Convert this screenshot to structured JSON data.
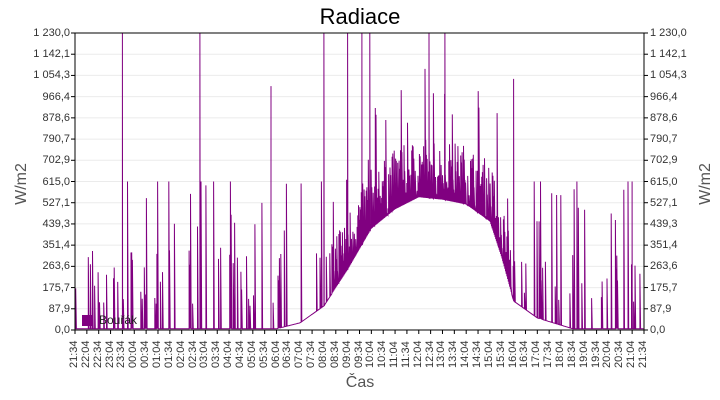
{
  "chart_data": {
    "type": "line",
    "title": "Radiace",
    "xlabel": "Čas",
    "ylabel": "W/m2",
    "ylabel_right": "W/m2",
    "ylim": [
      0,
      1230
    ],
    "grid": true,
    "legend_position": "bottom-left inside plot",
    "y_ticks": [
      "0,0",
      "87,9",
      "175,7",
      "263,6",
      "351,4",
      "439,3",
      "527,1",
      "615,0",
      "702,9",
      "790,7",
      "878,6",
      "966,4",
      "1 054,3",
      "1 142,1",
      "1 230,0"
    ],
    "x_ticks": [
      "21:34",
      "22:04",
      "22:34",
      "23:04",
      "23:34",
      "00:04",
      "00:34",
      "01:04",
      "01:34",
      "02:04",
      "02:34",
      "03:04",
      "03:34",
      "04:04",
      "04:34",
      "05:04",
      "05:34",
      "06:04",
      "06:34",
      "07:04",
      "07:34",
      "08:04",
      "08:34",
      "09:04",
      "09:34",
      "10:04",
      "10:34",
      "11:04",
      "11:34",
      "12:04",
      "12:34",
      "13:04",
      "13:34",
      "14:04",
      "14:34",
      "15:04",
      "15:34",
      "16:04",
      "16:34",
      "17:04",
      "17:34",
      "18:04",
      "18:34",
      "19:04",
      "19:34",
      "20:04",
      "20:34",
      "21:04",
      "21:34"
    ],
    "series": [
      {
        "name": "Bouřák",
        "color": "#800080",
        "description": "Solar radiation over 24h; near 0 at night with frequent spikes (up to 615 and occasional 1230), baseline rising from ~06:30, plateau ~500-700 W/m2 between 09:30 and 15:30 with peaks to 1230, dropping after ~16:30 to near 0 by ~18:30.",
        "baseline_envelope": [
          {
            "t": "21:34",
            "v": 5
          },
          {
            "t": "06:04",
            "v": 5
          },
          {
            "t": "07:04",
            "v": 30
          },
          {
            "t": "08:04",
            "v": 100
          },
          {
            "t": "09:04",
            "v": 250
          },
          {
            "t": "10:04",
            "v": 420
          },
          {
            "t": "11:04",
            "v": 500
          },
          {
            "t": "12:04",
            "v": 550
          },
          {
            "t": "13:04",
            "v": 540
          },
          {
            "t": "14:04",
            "v": 520
          },
          {
            "t": "15:04",
            "v": 450
          },
          {
            "t": "15:34",
            "v": 300
          },
          {
            "t": "16:04",
            "v": 120
          },
          {
            "t": "17:04",
            "v": 50
          },
          {
            "t": "18:04",
            "v": 20
          },
          {
            "t": "18:34",
            "v": 5
          },
          {
            "t": "21:34",
            "v": 5
          }
        ],
        "notable_peaks": [
          {
            "t": "23:34",
            "v": 1230
          },
          {
            "t": "02:50",
            "v": 1230
          },
          {
            "t": "05:50",
            "v": 1010
          },
          {
            "t": "08:04",
            "v": 1230
          },
          {
            "t": "09:04",
            "v": 1230
          },
          {
            "t": "09:40",
            "v": 1230
          },
          {
            "t": "10:00",
            "v": 1230
          },
          {
            "t": "12:30",
            "v": 1230
          },
          {
            "t": "13:10",
            "v": 1230
          },
          {
            "t": "16:04",
            "v": 1040
          },
          {
            "t": "21:04",
            "v": 615
          }
        ]
      }
    ]
  },
  "legend": {
    "label": "Bouřák",
    "color": "#800080"
  },
  "colors": {
    "series": "#800080",
    "grid": "#ebebeb",
    "axis": "#000000"
  }
}
